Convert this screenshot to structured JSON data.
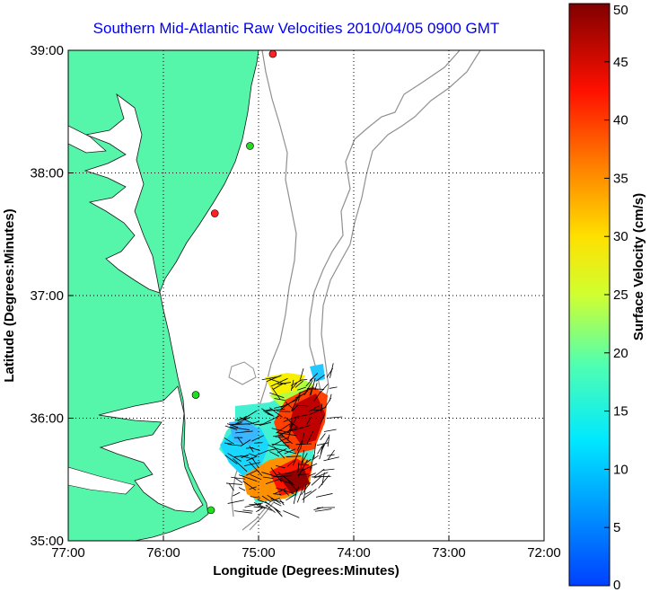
{
  "title": "Southern Mid-Atlantic Raw Velocities 2010/04/05 0900 GMT",
  "map": {
    "xlabel": "Longitude (Degrees:Minutes)",
    "ylabel": "Latitude (Degrees:Minutes)",
    "lon_range": [
      -77,
      -72
    ],
    "lat_range": [
      35,
      39
    ],
    "x_ticks": [
      {
        "value": -77,
        "label": "77:00"
      },
      {
        "value": -76,
        "label": "76:00"
      },
      {
        "value": -75,
        "label": "75:00"
      },
      {
        "value": -74,
        "label": "74:00"
      },
      {
        "value": -73,
        "label": "73:00"
      },
      {
        "value": -72,
        "label": "72:00"
      }
    ],
    "y_ticks": [
      {
        "value": 35,
        "label": "35:00"
      },
      {
        "value": 36,
        "label": "36:00"
      },
      {
        "value": 37,
        "label": "37:00"
      },
      {
        "value": 38,
        "label": "38:00"
      },
      {
        "value": 39,
        "label": "39:00"
      }
    ],
    "grid": "dotted",
    "land_color": "#55f5aa",
    "bathymetry_color": "#909090",
    "stations": [
      {
        "lon": -74.85,
        "lat": 38.97,
        "color": "#ff2222"
      },
      {
        "lon": -75.09,
        "lat": 38.22,
        "color": "#22dd22"
      },
      {
        "lon": -75.46,
        "lat": 37.67,
        "color": "#ff2222"
      },
      {
        "lon": -75.66,
        "lat": 36.19,
        "color": "#22dd22"
      },
      {
        "lon": -75.5,
        "lat": 35.25,
        "color": "#22dd22"
      }
    ]
  },
  "colorbar": {
    "label": "Surface Velocity (cm/s)",
    "min": 0,
    "max": 50,
    "ticks": [
      "0",
      "5",
      "10",
      "15",
      "20",
      "25",
      "30",
      "35",
      "40",
      "45",
      "50"
    ]
  }
}
